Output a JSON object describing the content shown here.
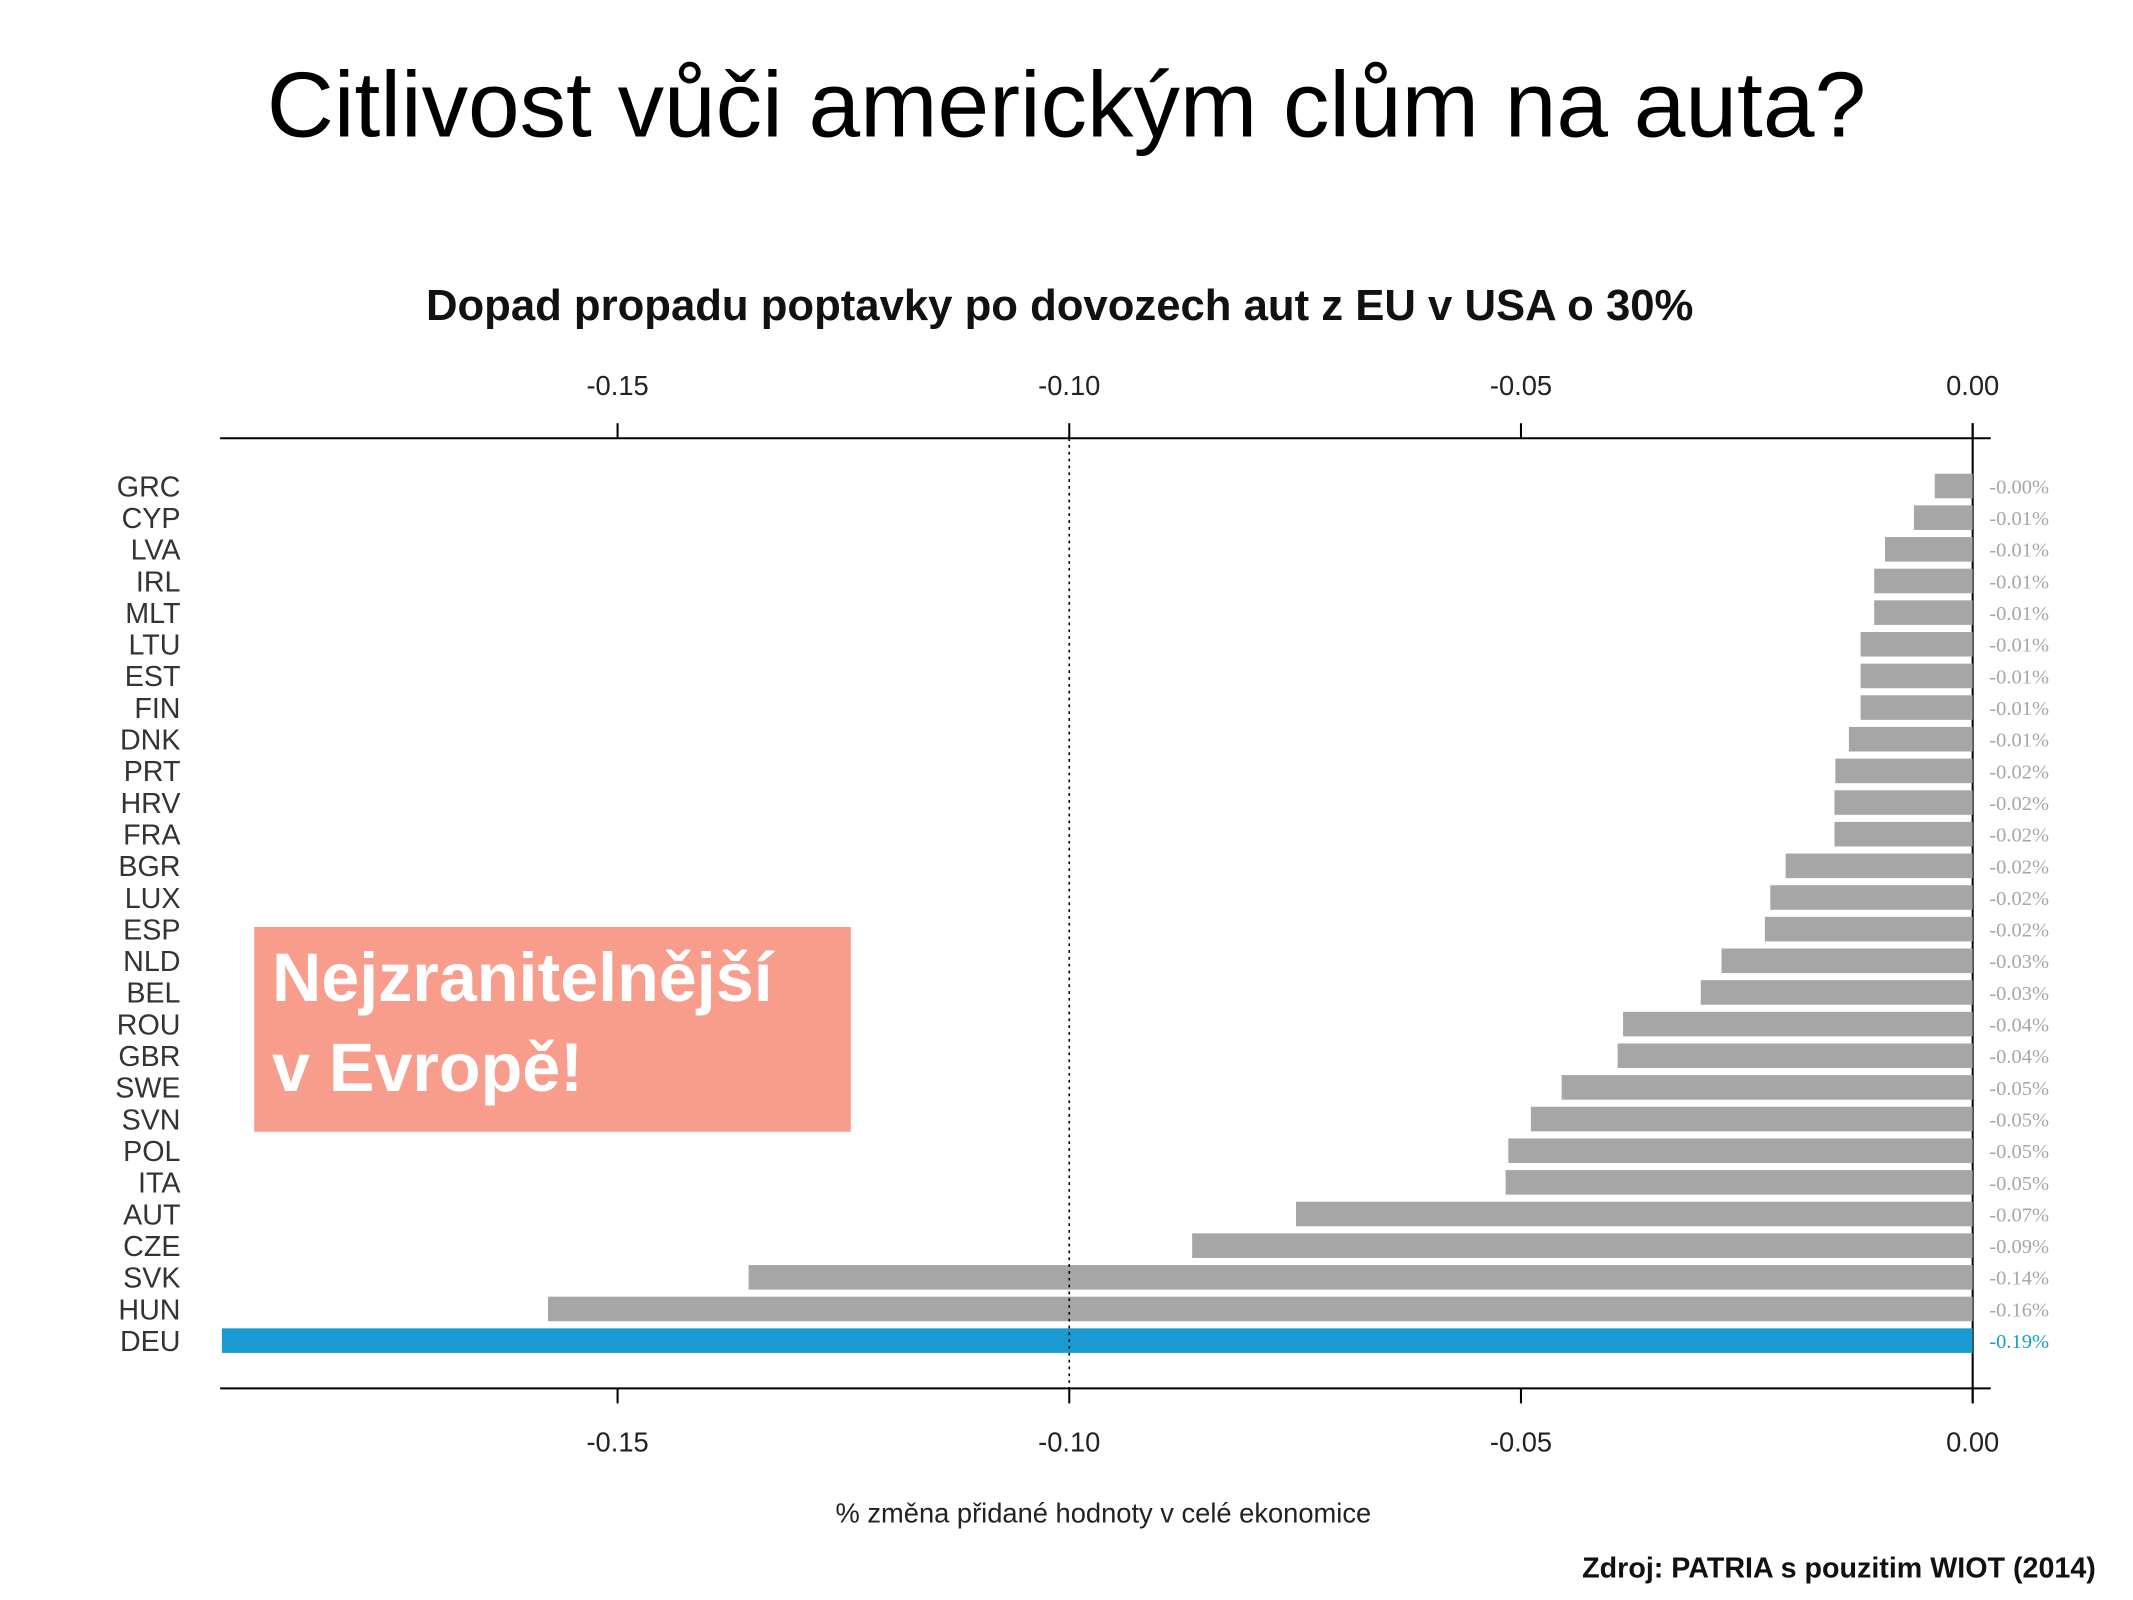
{
  "page_title": "Citlivost vůči americkým clům na auta?",
  "source": "Zdroj: PATRIA s pouzitim WIOT (2014)",
  "chart_data": {
    "type": "barh",
    "title": "Dopad propadu poptavky po dovozech aut z EU v USA o 30%",
    "xlabel": "% změna přidané hodnoty v celé ekonomice",
    "annotation": [
      "Nejzranitelnější",
      "v Evropě!"
    ],
    "categories": [
      "GRC",
      "CYP",
      "LVA",
      "IRL",
      "MLT",
      "LTU",
      "EST",
      "FIN",
      "DNK",
      "PRT",
      "HRV",
      "FRA",
      "BGR",
      "LUX",
      "ESP",
      "NLD",
      "BEL",
      "ROU",
      "GBR",
      "SWE",
      "SVN",
      "POL",
      "ITA",
      "AUT",
      "CZE",
      "SVK",
      "HUN",
      "DEU"
    ],
    "values": [
      -0.0042,
      -0.0065,
      -0.0097,
      -0.0109,
      -0.0109,
      -0.0124,
      -0.0124,
      -0.0124,
      -0.0137,
      -0.0152,
      -0.0153,
      -0.0153,
      -0.0207,
      -0.0224,
      -0.023,
      -0.0278,
      -0.0301,
      -0.0387,
      -0.0393,
      -0.0455,
      -0.0489,
      -0.0514,
      -0.0517,
      -0.0749,
      -0.0864,
      -0.1355,
      -0.1577,
      -0.1938
    ],
    "value_labels": [
      "-0.00%",
      "-0.01%",
      "-0.01%",
      "-0.01%",
      "-0.01%",
      "-0.01%",
      "-0.01%",
      "-0.01%",
      "-0.01%",
      "-0.02%",
      "-0.02%",
      "-0.02%",
      "-0.02%",
      "-0.02%",
      "-0.02%",
      "-0.03%",
      "-0.03%",
      "-0.04%",
      "-0.04%",
      "-0.05%",
      "-0.05%",
      "-0.05%",
      "-0.05%",
      "-0.07%",
      "-0.09%",
      "-0.14%",
      "-0.16%",
      "-0.19%"
    ],
    "colors": [
      "#a6a6a6",
      "#a6a6a6",
      "#a6a6a6",
      "#a6a6a6",
      "#a6a6a6",
      "#a6a6a6",
      "#a6a6a6",
      "#a6a6a6",
      "#a6a6a6",
      "#a6a6a6",
      "#a6a6a6",
      "#a6a6a6",
      "#a6a6a6",
      "#a6a6a6",
      "#a6a6a6",
      "#a6a6a6",
      "#a6a6a6",
      "#a6a6a6",
      "#a6a6a6",
      "#a6a6a6",
      "#a6a6a6",
      "#a6a6a6",
      "#a6a6a6",
      "#a6a6a6",
      "#a6a6a6",
      "#a6a6a6",
      "#a6a6a6",
      "#1a9ad0"
    ],
    "xlim": [
      -0.194,
      0.002
    ],
    "xticks": [
      {
        "value": -0.15,
        "label": "-0.15"
      },
      {
        "value": -0.1,
        "label": "-0.10"
      },
      {
        "value": -0.05,
        "label": "-0.05"
      },
      {
        "value": 0,
        "label": "0.00"
      }
    ],
    "reference_line": -0.1
  }
}
